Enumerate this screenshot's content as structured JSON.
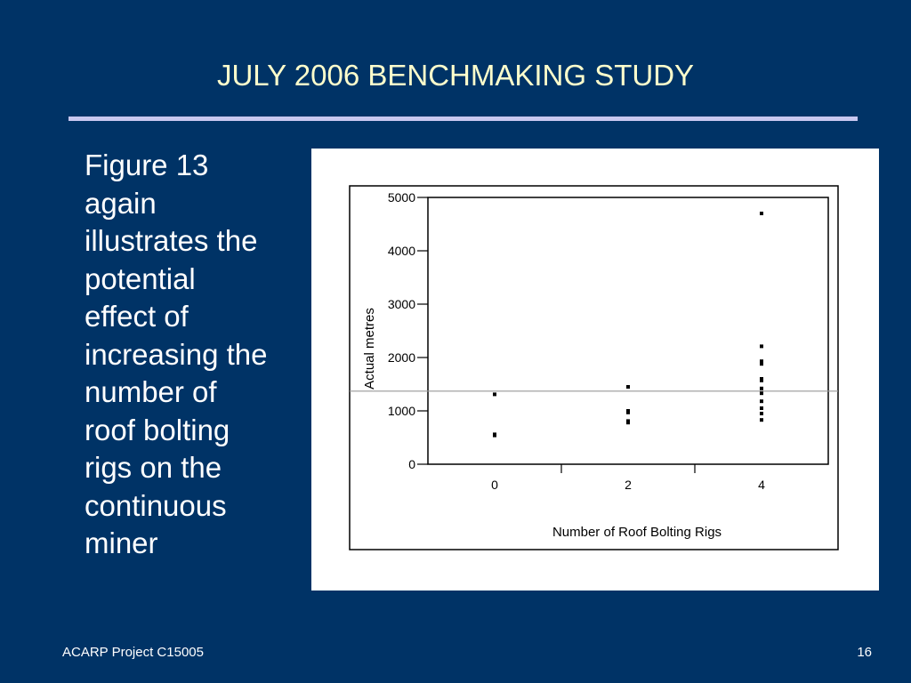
{
  "slide": {
    "title": "JULY 2006 BENCHMAKING STUDY",
    "body_lines": [
      "Figure 13",
      "again",
      "illustrates the",
      "potential",
      "effect of",
      "increasing the",
      "number of",
      "roof bolting",
      "rigs on the",
      "continuous",
      "miner"
    ],
    "footer_left": "ACARP Project C15005",
    "footer_right": "16"
  },
  "chart_data": {
    "type": "scatter",
    "title": "",
    "xlabel": "Number of Roof Bolting Rigs",
    "ylabel": "Actual metres",
    "x_ticks": [
      "0",
      "2",
      "4"
    ],
    "y_ticks": [
      "0",
      "1000",
      "2000",
      "3000",
      "4000",
      "5000"
    ],
    "xlim": [
      -1,
      5
    ],
    "ylim": [
      0,
      5000
    ],
    "grid": false,
    "reference_line": {
      "y": 1370
    },
    "series": [
      {
        "points": [
          {
            "x": 0,
            "y": 1310
          },
          {
            "x": 0,
            "y": 560
          },
          {
            "x": 0,
            "y": 540
          },
          {
            "x": 2,
            "y": 1450
          },
          {
            "x": 2,
            "y": 1000
          },
          {
            "x": 2,
            "y": 970
          },
          {
            "x": 2,
            "y": 810
          },
          {
            "x": 2,
            "y": 780
          },
          {
            "x": 4,
            "y": 4700
          },
          {
            "x": 4,
            "y": 2210
          },
          {
            "x": 4,
            "y": 1930
          },
          {
            "x": 4,
            "y": 1880
          },
          {
            "x": 4,
            "y": 1600
          },
          {
            "x": 4,
            "y": 1570
          },
          {
            "x": 4,
            "y": 1420
          },
          {
            "x": 4,
            "y": 1330
          },
          {
            "x": 4,
            "y": 1180
          },
          {
            "x": 4,
            "y": 1050
          },
          {
            "x": 4,
            "y": 950
          },
          {
            "x": 4,
            "y": 830
          }
        ]
      }
    ]
  }
}
